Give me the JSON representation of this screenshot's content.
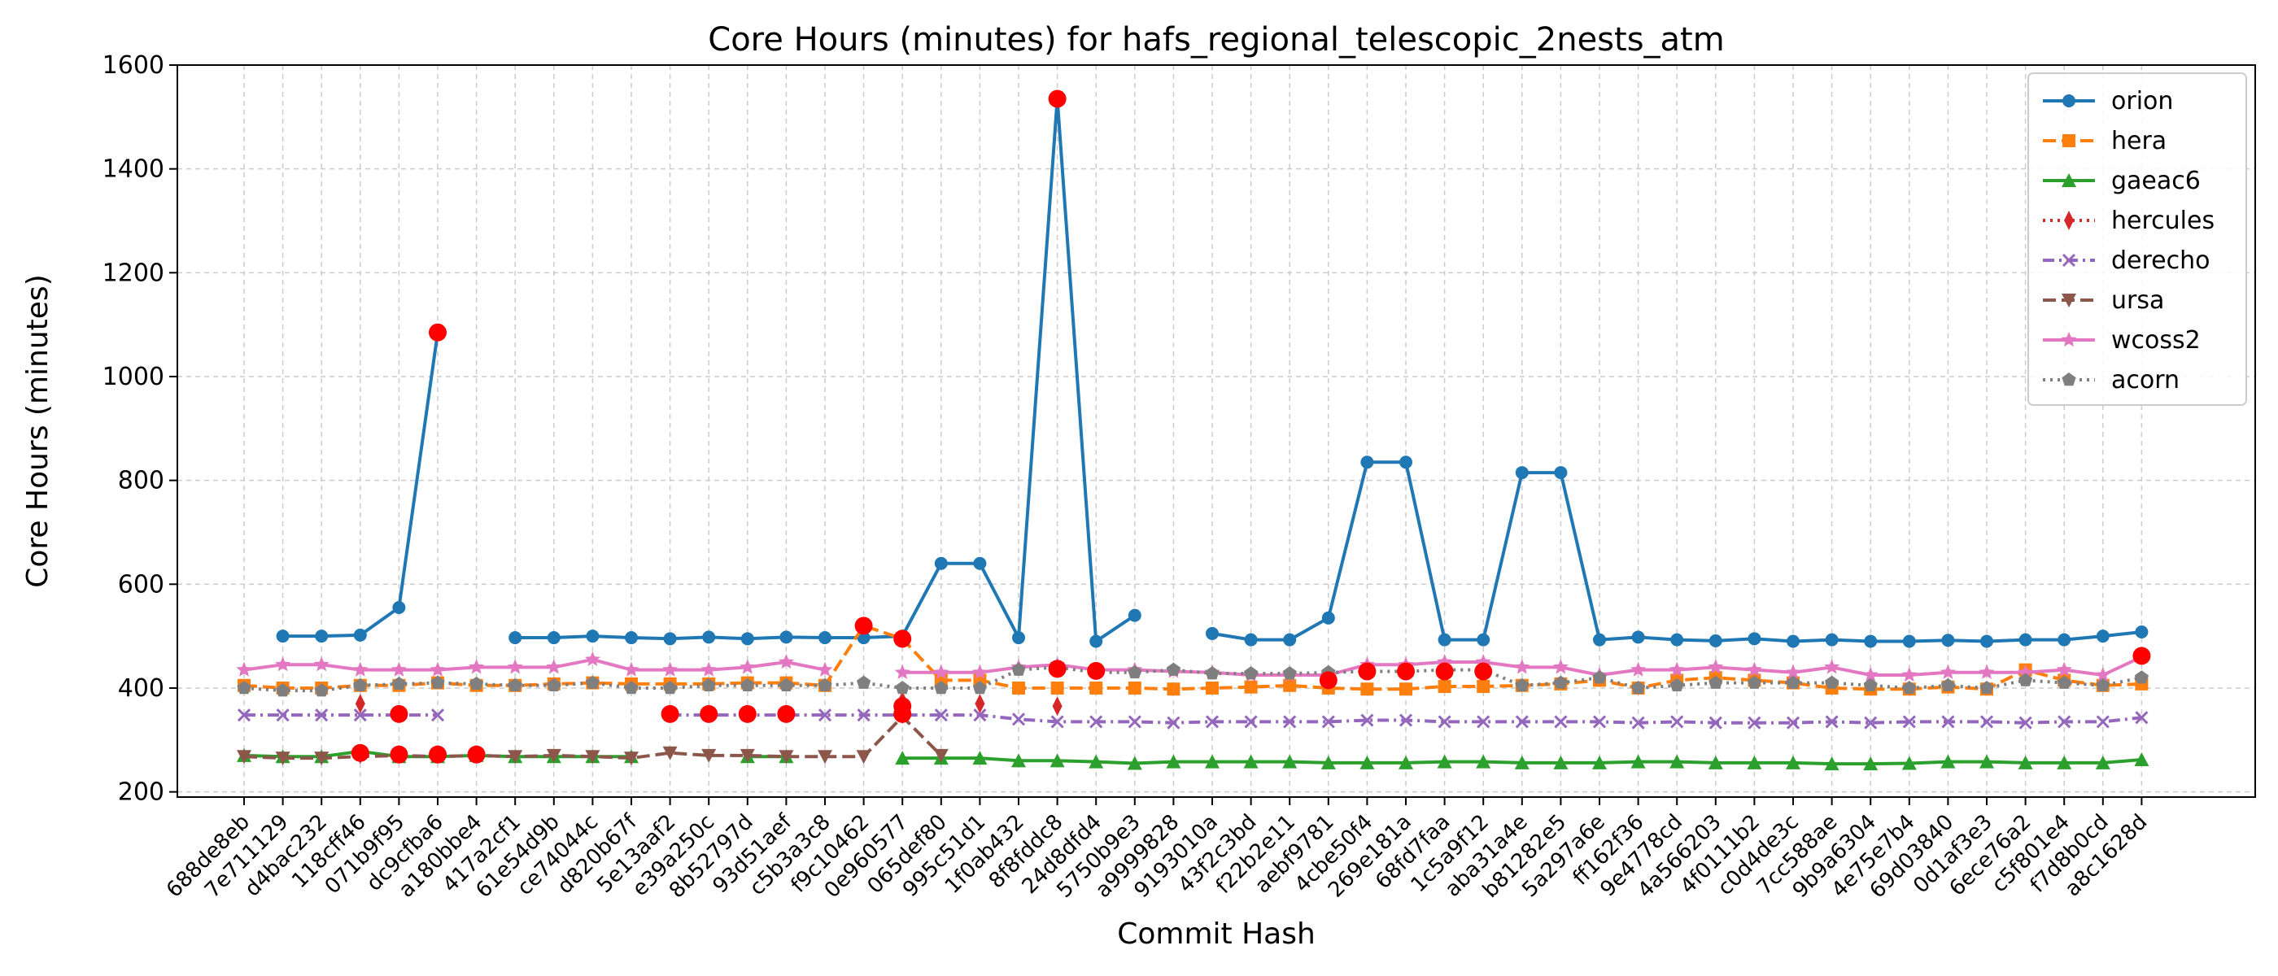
{
  "chart_data": {
    "type": "line",
    "title": "Core Hours (minutes) for hafs_regional_telescopic_2nests_atm",
    "xlabel": "Commit Hash",
    "ylabel": "Core Hours (minutes)",
    "ylim": [
      190,
      1600
    ],
    "yticks": [
      200,
      400,
      600,
      800,
      1000,
      1200,
      1400,
      1600
    ],
    "grid": true,
    "legend_position": "top-right",
    "categories": [
      "688de8eb",
      "7e711129",
      "d4bac232",
      "118cff46",
      "071b9f95",
      "dc9cfba6",
      "a180bbe4",
      "417a2cf1",
      "61e54d9b",
      "ce74044c",
      "d820b67f",
      "5e13aaf2",
      "e39a250c",
      "8b52797d",
      "93d51aef",
      "c5b3a3c8",
      "f9c10462",
      "0e960577",
      "065def80",
      "995c51d1",
      "1f0ab432",
      "8f8fddc8",
      "24d8dfd4",
      "5750b9e3",
      "a9999828",
      "9193010a",
      "43f2c3bd",
      "f22b2e11",
      "aebf9781",
      "4cbe50f4",
      "269e181a",
      "68fd7faa",
      "1c5a9f12",
      "aba31a4e",
      "b81282e5",
      "5a297a6e",
      "ff162f36",
      "9e4778cd",
      "4a566203",
      "4f0111b2",
      "c0d4de3c",
      "7cc588ae",
      "9b9a6304",
      "4e75e7b4",
      "69d03840",
      "0d1af3e3",
      "6ece76a2",
      "c5f801e4",
      "f7d8b0cd",
      "a8c1628d"
    ],
    "series": [
      {
        "name": "orion",
        "color": "#1f77b4",
        "marker": "circle",
        "dash": "solid",
        "values": [
          null,
          500,
          500,
          502,
          555,
          1085,
          null,
          497,
          497,
          500,
          497,
          495,
          498,
          495,
          498,
          497,
          497,
          500,
          640,
          640,
          497,
          1535,
          490,
          540,
          null,
          505,
          493,
          493,
          535,
          835,
          835,
          493,
          493,
          815,
          815,
          493,
          498,
          493,
          491,
          495,
          490,
          493,
          490,
          490,
          492,
          490,
          493,
          493,
          500,
          508
        ]
      },
      {
        "name": "hera",
        "color": "#ff7f0e",
        "marker": "square",
        "dash": "dashed",
        "values": [
          405,
          400,
          400,
          405,
          405,
          410,
          405,
          405,
          408,
          410,
          408,
          408,
          408,
          410,
          410,
          405,
          520,
          495,
          415,
          415,
          400,
          400,
          400,
          400,
          398,
          400,
          402,
          405,
          400,
          398,
          398,
          403,
          403,
          405,
          408,
          415,
          400,
          415,
          420,
          415,
          410,
          400,
          398,
          398,
          402,
          398,
          435,
          415,
          405,
          408
        ]
      },
      {
        "name": "gaeac6",
        "color": "#2ca02c",
        "marker": "triangle-up",
        "dash": "solid",
        "values": [
          270,
          268,
          268,
          278,
          268,
          268,
          270,
          268,
          268,
          268,
          268,
          null,
          null,
          268,
          268,
          null,
          null,
          265,
          265,
          265,
          260,
          260,
          258,
          255,
          258,
          258,
          258,
          258,
          256,
          256,
          256,
          258,
          258,
          256,
          256,
          256,
          258,
          258,
          256,
          256,
          256,
          254,
          254,
          255,
          258,
          258,
          256,
          256,
          256,
          262
        ]
      },
      {
        "name": "hercules",
        "color": "#d62728",
        "marker": "diamond",
        "dash": "dotted",
        "values": [
          null,
          null,
          null,
          370,
          null,
          null,
          null,
          null,
          null,
          null,
          null,
          null,
          null,
          null,
          null,
          null,
          null,
          375,
          null,
          370,
          null,
          365,
          null,
          null,
          null,
          null,
          null,
          null,
          null,
          null,
          null,
          null,
          null,
          null,
          null,
          null,
          null,
          null,
          null,
          null,
          null,
          null,
          null,
          null,
          null,
          null,
          null,
          null,
          null,
          null
        ]
      },
      {
        "name": "derecho",
        "color": "#9467bd",
        "marker": "x",
        "dash": "dashdot",
        "values": [
          348,
          348,
          348,
          348,
          348,
          348,
          null,
          null,
          null,
          null,
          null,
          348,
          348,
          348,
          348,
          348,
          348,
          348,
          348,
          348,
          340,
          335,
          335,
          335,
          333,
          335,
          335,
          335,
          335,
          338,
          338,
          335,
          335,
          335,
          335,
          335,
          333,
          335,
          333,
          333,
          333,
          335,
          333,
          335,
          335,
          335,
          333,
          335,
          335,
          343
        ]
      },
      {
        "name": "ursa",
        "color": "#8c564b",
        "marker": "triangle-down",
        "dash": "dashed",
        "values": [
          268,
          265,
          265,
          268,
          270,
          268,
          270,
          268,
          270,
          268,
          265,
          275,
          270,
          270,
          268,
          268,
          268,
          345,
          270,
          null,
          null,
          null,
          null,
          null,
          null,
          null,
          null,
          null,
          null,
          null,
          null,
          null,
          null,
          null,
          null,
          null,
          null,
          null,
          null,
          null,
          null,
          null,
          null,
          null,
          null,
          null,
          null,
          null,
          null,
          null
        ]
      },
      {
        "name": "wcoss2",
        "color": "#e377c2",
        "marker": "star",
        "dash": "solid",
        "values": [
          435,
          445,
          445,
          435,
          435,
          435,
          440,
          440,
          440,
          455,
          435,
          435,
          435,
          440,
          450,
          435,
          null,
          430,
          430,
          430,
          440,
          445,
          435,
          435,
          432,
          430,
          425,
          425,
          425,
          445,
          445,
          450,
          450,
          440,
          440,
          425,
          435,
          435,
          440,
          435,
          430,
          440,
          425,
          425,
          430,
          430,
          430,
          435,
          425,
          460
        ]
      },
      {
        "name": "acorn",
        "color": "#7f7f7f",
        "marker": "pentagon",
        "dash": "dotted",
        "values": [
          400,
          395,
          395,
          405,
          408,
          410,
          408,
          405,
          405,
          410,
          400,
          400,
          405,
          405,
          405,
          405,
          410,
          400,
          400,
          400,
          435,
          440,
          430,
          430,
          435,
          428,
          428,
          428,
          430,
          432,
          432,
          435,
          435,
          405,
          410,
          420,
          400,
          405,
          410,
          410,
          410,
          410,
          405,
          400,
          405,
          400,
          415,
          410,
          405,
          420
        ]
      }
    ],
    "flagged_points": [
      {
        "category": "118cff46",
        "value": 275
      },
      {
        "category": "071b9f95",
        "value": 350
      },
      {
        "category": "071b9f95",
        "value": 272
      },
      {
        "category": "dc9cfba6",
        "value": 1085
      },
      {
        "category": "dc9cfba6",
        "value": 272
      },
      {
        "category": "a180bbe4",
        "value": 272
      },
      {
        "category": "5e13aaf2",
        "value": 350
      },
      {
        "category": "e39a250c",
        "value": 350
      },
      {
        "category": "8b52797d",
        "value": 350
      },
      {
        "category": "93d51aef",
        "value": 350
      },
      {
        "category": "f9c10462",
        "value": 520
      },
      {
        "category": "0e960577",
        "value": 495
      },
      {
        "category": "0e960577",
        "value": 365
      },
      {
        "category": "0e960577",
        "value": 350
      },
      {
        "category": "8f8fddc8",
        "value": 1535
      },
      {
        "category": "8f8fddc8",
        "value": 437
      },
      {
        "category": "24d8dfd4",
        "value": 433
      },
      {
        "category": "aebf9781",
        "value": 415
      },
      {
        "category": "4cbe50f4",
        "value": 432
      },
      {
        "category": "269e181a",
        "value": 432
      },
      {
        "category": "68fd7faa",
        "value": 432
      },
      {
        "category": "1c5a9f12",
        "value": 432
      },
      {
        "category": "a8c1628d",
        "value": 462
      }
    ],
    "flag_color": "#ff0000"
  }
}
